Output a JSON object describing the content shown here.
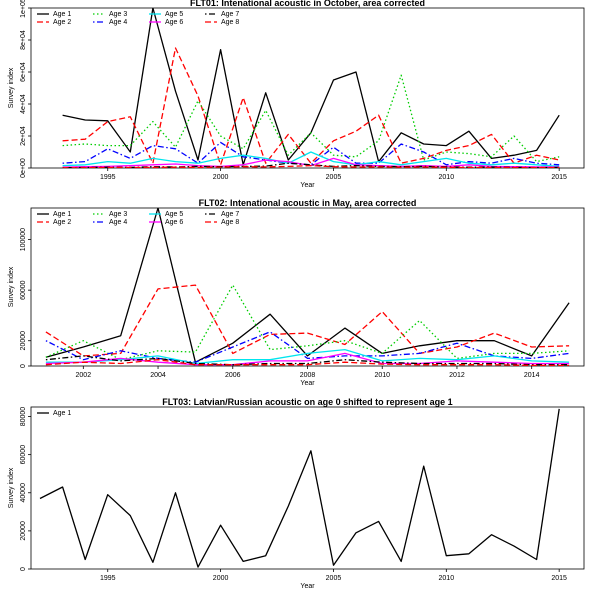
{
  "colors": {
    "Age 0": "#000000",
    "Age 1": "#000000",
    "Age 2": "#ff0000",
    "Age 3": "#00cd00",
    "Age 4": "#0000ff",
    "Age 5": "#00e5ee",
    "Age 6": "#ff00ff",
    "Age 7": "#000000",
    "Age 8": "#ff0000"
  },
  "chart_data": [
    {
      "type": "line",
      "title": "FLT01:       Intenational acoustic in October, area corrected",
      "xlabel": "Year",
      "ylabel": "Survey index",
      "xlim": [
        1991.6,
        2016.1
      ],
      "ylim": [
        0,
        100000
      ],
      "yticks": [
        0,
        20000,
        40000,
        60000,
        80000,
        100000
      ],
      "ytick_labels": [
        "0e+00",
        "2e+04",
        "4e+04",
        "6e+04",
        "8e+04",
        "1e+05"
      ],
      "xticks": [
        1995,
        2000,
        2005,
        2010,
        2015
      ],
      "xtick_labels": [
        "1995",
        "2000",
        "2005",
        "2010",
        "2015"
      ],
      "grid": false,
      "legend": "top-left",
      "legend_columns": 3,
      "x": [
        1993,
        1994,
        1995,
        1996,
        1997,
        1998,
        1999,
        2000,
        2001,
        2002,
        2003,
        2004,
        2005,
        2006,
        2007,
        2008,
        2009,
        2010,
        2011,
        2012,
        2013,
        2014,
        2015
      ],
      "series": [
        {
          "name": "Age 1",
          "style": "solid",
          "values": [
            33000,
            30000,
            29500,
            10000,
            100000,
            48000,
            5000,
            74000,
            2000,
            47000,
            5000,
            22000,
            55000,
            60000,
            4000,
            22000,
            15000,
            14000,
            23000,
            6000,
            8000,
            11000,
            33000
          ]
        },
        {
          "name": "Age 2",
          "style": "dashed",
          "values": [
            17000,
            18000,
            29000,
            32000,
            3000,
            75000,
            45000,
            2000,
            44000,
            3000,
            21000,
            3000,
            17000,
            23000,
            33000,
            3000,
            6000,
            11000,
            14000,
            21000,
            3000,
            8000,
            5000
          ]
        },
        {
          "name": "Age 3",
          "style": "dotted",
          "values": [
            14000,
            15000,
            14000,
            14000,
            29000,
            13000,
            42000,
            20000,
            12000,
            36000,
            8000,
            22000,
            8000,
            7000,
            17000,
            58000,
            5000,
            10000,
            9000,
            7000,
            20000,
            4000,
            7000
          ]
        },
        {
          "name": "Age 4",
          "style": "dotdash",
          "values": [
            3000,
            4000,
            12000,
            6000,
            14000,
            12000,
            3000,
            16000,
            7000,
            5000,
            3000,
            2000,
            13000,
            3000,
            3000,
            15000,
            10000,
            2000,
            4000,
            3000,
            6000,
            3000,
            2000
          ]
        },
        {
          "name": "Age 5",
          "style": "solid",
          "values": [
            1500,
            2000,
            4000,
            3000,
            6000,
            4000,
            3000,
            6000,
            8000,
            6000,
            3000,
            10000,
            4000,
            2000,
            4000,
            2000,
            4000,
            6000,
            3000,
            2000,
            3000,
            2000,
            1000
          ]
        },
        {
          "name": "Age 6",
          "style": "solid",
          "values": [
            500,
            800,
            1000,
            1500,
            2000,
            2500,
            1500,
            1000,
            2000,
            5000,
            4000,
            1500,
            6000,
            2000,
            1500,
            1000,
            1500,
            1000,
            2000,
            1000,
            800,
            700,
            600
          ]
        },
        {
          "name": "Age 7",
          "style": "dotdash",
          "values": [
            200,
            300,
            500,
            400,
            800,
            600,
            1000,
            800,
            1000,
            1200,
            3000,
            2000,
            1000,
            1500,
            1000,
            800,
            1000,
            700,
            500,
            600,
            400,
            300,
            300
          ]
        },
        {
          "name": "Age 8",
          "style": "dashed",
          "values": [
            100,
            200,
            300,
            300,
            400,
            500,
            400,
            600,
            800,
            700,
            1000,
            1500,
            800,
            600,
            700,
            500,
            600,
            400,
            300,
            300,
            200,
            200,
            200
          ]
        }
      ]
    },
    {
      "type": "line",
      "title": "FLT02: Intenational acoustic in May, area corrected",
      "xlabel": "Year",
      "ylabel": "Survey index",
      "xlim": [
        2000.6,
        2015.4
      ],
      "ylim": [
        0,
        125000
      ],
      "yticks": [
        0,
        20000,
        60000,
        100000
      ],
      "ytick_labels": [
        "0",
        "20000",
        "60000",
        "100000"
      ],
      "xticks": [
        2002,
        2004,
        2006,
        2008,
        2010,
        2012,
        2014
      ],
      "xtick_labels": [
        "2002",
        "2004",
        "2006",
        "2008",
        "2010",
        "2012",
        "2014"
      ],
      "grid": false,
      "legend": "top-left",
      "legend_columns": 3,
      "x": [
        2001,
        2002,
        2003,
        2004,
        2005,
        2006,
        2007,
        2008,
        2009,
        2010,
        2011,
        2012,
        2013,
        2014,
        2015
      ],
      "series": [
        {
          "name": "Age 1",
          "style": "solid",
          "values": [
            7000,
            15000,
            24000,
            125000,
            3000,
            18000,
            41000,
            8000,
            30000,
            10000,
            16000,
            20000,
            20000,
            8000,
            50000
          ]
        },
        {
          "name": "Age 2",
          "style": "dashed",
          "values": [
            27000,
            8000,
            10000,
            61000,
            64000,
            10000,
            25000,
            26000,
            17000,
            43000,
            10000,
            15000,
            26000,
            15000,
            16000
          ]
        },
        {
          "name": "Age 3",
          "style": "dotted",
          "values": [
            7000,
            20000,
            5000,
            12000,
            11000,
            64000,
            13000,
            16000,
            20000,
            10000,
            36000,
            6000,
            10000,
            10000,
            12000
          ]
        },
        {
          "name": "Age 4",
          "style": "dotdash",
          "values": [
            20000,
            5000,
            12000,
            6000,
            3000,
            15000,
            27000,
            6000,
            8000,
            8000,
            10000,
            18000,
            8000,
            6000,
            10000
          ]
        },
        {
          "name": "Age 5",
          "style": "solid",
          "values": [
            3000,
            3000,
            5000,
            8000,
            2000,
            5000,
            5000,
            10000,
            13000,
            4000,
            6000,
            5000,
            8000,
            4000,
            3000
          ]
        },
        {
          "name": "Age 6",
          "style": "solid",
          "values": [
            2000,
            3000,
            6000,
            3000,
            1000,
            1000,
            4000,
            4000,
            10000,
            2000,
            2000,
            4000,
            3000,
            2000,
            2000
          ]
        },
        {
          "name": "Age 7",
          "style": "dotdash",
          "values": [
            5000,
            8000,
            4000,
            6000,
            2000,
            1000,
            2000,
            2000,
            5000,
            3000,
            2000,
            2000,
            2000,
            1000,
            1000
          ]
        },
        {
          "name": "Age 8",
          "style": "dashed",
          "values": [
            1000,
            3000,
            2000,
            5000,
            1000,
            1000,
            1000,
            1000,
            3000,
            1500,
            1000,
            1000,
            1000,
            500,
            500
          ]
        }
      ]
    },
    {
      "type": "line",
      "title": "FLT03: Latvian/Russian acoustic on age 0 shifted to represent age 1",
      "xlabel": "Year",
      "ylabel": "Survey index",
      "xlim": [
        1991.6,
        2016.1
      ],
      "ylim": [
        0,
        85000
      ],
      "yticks": [
        0,
        20000,
        40000,
        60000,
        80000
      ],
      "ytick_labels": [
        "0",
        "20000",
        "40000",
        "60000",
        "80000"
      ],
      "xticks": [
        1995,
        2000,
        2005,
        2010,
        2015
      ],
      "xtick_labels": [
        "1995",
        "2000",
        "2005",
        "2010",
        "2015"
      ],
      "grid": false,
      "legend": "top-left",
      "legend_columns": 1,
      "x": [
        1992,
        1993,
        1994,
        1995,
        1996,
        1997,
        1998,
        1999,
        2000,
        2001,
        2002,
        2003,
        2004,
        2005,
        2006,
        2007,
        2008,
        2009,
        2010,
        2011,
        2012,
        2013,
        2014,
        2015
      ],
      "series": [
        {
          "name": "Age 1",
          "style": "solid",
          "values": [
            37000,
            43000,
            5000,
            39000,
            28000,
            3500,
            40000,
            1000,
            23000,
            4000,
            7000,
            33000,
            62000,
            2000,
            19000,
            25000,
            4000,
            54000,
            7000,
            8000,
            18000,
            12000,
            5000,
            84000
          ]
        }
      ]
    }
  ]
}
